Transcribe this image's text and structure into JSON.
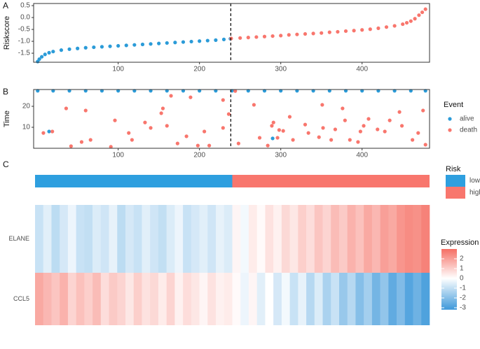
{
  "chart_data": [
    {
      "type": "scatter",
      "panel_label": "A",
      "ylabel": "Riskscore",
      "xlim": [
        -4,
        483
      ],
      "ylim": [
        -1.88,
        0.59
      ],
      "xticks": [
        100,
        200,
        300,
        400
      ],
      "yticks": [
        0.5,
        {
          "value": 0,
          "label": "0.0"
        },
        -0.5,
        {
          "value": -1,
          "label": "-1.0"
        },
        -1.5
      ],
      "vline": 238.5,
      "series": [
        {
          "color": "#2b9bd8",
          "x": [
            1,
            3,
            6,
            10,
            15,
            20,
            30,
            40,
            50,
            60,
            70,
            80,
            90,
            100,
            110,
            120,
            130,
            140,
            150,
            160,
            170,
            180,
            190,
            200,
            210,
            220,
            230,
            238
          ],
          "values": [
            -1.85,
            -1.75,
            -1.65,
            -1.55,
            -1.48,
            -1.43,
            -1.37,
            -1.33,
            -1.3,
            -1.27,
            -1.25,
            -1.23,
            -1.21,
            -1.19,
            -1.17,
            -1.15,
            -1.13,
            -1.11,
            -1.09,
            -1.07,
            -1.05,
            -1.03,
            -1.01,
            -0.99,
            -0.97,
            -0.95,
            -0.92,
            -0.89
          ]
        },
        {
          "color": "#f8766d",
          "x": [
            239,
            250,
            260,
            270,
            280,
            290,
            300,
            310,
            320,
            330,
            340,
            350,
            360,
            370,
            380,
            390,
            400,
            410,
            420,
            430,
            440,
            450,
            455,
            460,
            465,
            470,
            474,
            478
          ],
          "values": [
            -0.88,
            -0.86,
            -0.84,
            -0.82,
            -0.8,
            -0.78,
            -0.76,
            -0.73,
            -0.71,
            -0.69,
            -0.67,
            -0.65,
            -0.62,
            -0.6,
            -0.57,
            -0.55,
            -0.52,
            -0.49,
            -0.45,
            -0.4,
            -0.35,
            -0.28,
            -0.22,
            -0.15,
            -0.05,
            0.1,
            0.22,
            0.35
          ]
        }
      ]
    },
    {
      "type": "scatter",
      "panel_label": "B",
      "ylabel": "Time",
      "legend_title": "Event",
      "xlim": [
        -4,
        483
      ],
      "ylim": [
        0,
        28
      ],
      "xticks": [
        100,
        200,
        300,
        400
      ],
      "yticks": [
        10,
        20
      ],
      "vline": 238.5,
      "series": [
        {
          "name": "alive",
          "color": "#2b9bd8",
          "x": [
            1,
            20,
            40,
            60,
            80,
            100,
            120,
            140,
            160,
            180,
            200,
            220,
            240,
            260,
            280,
            300,
            320,
            340,
            360,
            380,
            400,
            420,
            440,
            460,
            478,
            15,
            290
          ],
          "values": [
            27.4,
            27.4,
            27.4,
            27.4,
            27.4,
            27.4,
            27.4,
            27.4,
            27.4,
            27.4,
            27.4,
            27.4,
            27.4,
            27.4,
            27.4,
            27.4,
            27.4,
            27.4,
            27.4,
            27.4,
            27.4,
            27.4,
            27.4,
            27.4,
            27.4,
            8,
            4.7
          ]
        },
        {
          "name": "death",
          "color": "#f8766d",
          "x": [
            8,
            19,
            36,
            42,
            60,
            55,
            66,
            91,
            96,
            113,
            117,
            133,
            140,
            153,
            155,
            160,
            165,
            173,
            184,
            189,
            198,
            206,
            212,
            229,
            229,
            236,
            244,
            248,
            267,
            274,
            284,
            289,
            291,
            296,
            298,
            303,
            311,
            315,
            330,
            334,
            347,
            351,
            352,
            362,
            367,
            376,
            379,
            385,
            395,
            398,
            402,
            408,
            419,
            428,
            434,
            446,
            449,
            462,
            469,
            475,
            478
          ],
          "values": [
            7.3,
            8,
            19,
            1,
            18,
            3,
            4,
            0.7,
            13.3,
            7.3,
            4,
            12.3,
            9.7,
            16.7,
            19,
            10.7,
            25,
            2.3,
            5.7,
            24.3,
            1.3,
            8,
            1.3,
            23,
            9.7,
            16.3,
            27.3,
            2.3,
            20.7,
            5,
            1.3,
            10.7,
            12.3,
            5,
            8.7,
            8.3,
            15,
            4,
            11.3,
            7.3,
            5.3,
            20.7,
            9.7,
            4,
            9,
            19,
            13.3,
            4,
            3,
            8,
            10.7,
            14,
            9,
            8,
            13.3,
            17.3,
            10.7,
            4,
            7.3,
            18,
            1.7
          ]
        }
      ]
    },
    {
      "type": "heatmap",
      "panel_label": "C",
      "rows": [
        "ELANE",
        "CCL5"
      ],
      "values": [
        [
          -0.9,
          -0.5,
          -1.1,
          -0.7,
          -0.3,
          -0.9,
          -1.0,
          -0.6,
          -0.8,
          -0.4,
          -1.1,
          -0.7,
          -0.9,
          -0.5,
          -0.8,
          -1.0,
          -0.6,
          -0.3,
          -0.9,
          -0.7,
          -0.5,
          -0.8,
          -0.4,
          -0.6,
          0.2,
          -0.2,
          0.4,
          0.1,
          0.6,
          0.3,
          0.8,
          0.5,
          1.0,
          0.7,
          1.2,
          0.9,
          1.4,
          1.1,
          1.6,
          1.3,
          1.8,
          1.5,
          2.0,
          1.8,
          2.2,
          2.4,
          2.3,
          2.6
        ],
        [
          1.8,
          1.5,
          1.2,
          1.6,
          0.9,
          1.3,
          1.0,
          1.4,
          0.7,
          1.1,
          0.9,
          0.5,
          1.0,
          0.6,
          0.8,
          0.4,
          0.9,
          0.3,
          0.7,
          0.5,
          0.2,
          0.6,
          0.3,
          0.4,
          0.1,
          -0.3,
          0.2,
          -0.5,
          0.0,
          -0.7,
          -0.2,
          -0.9,
          -0.4,
          -1.2,
          -0.6,
          -1.4,
          -0.9,
          -1.7,
          -1.2,
          -2.0,
          -1.5,
          -2.3,
          -1.8,
          -2.6,
          -2.1,
          -2.8,
          -2.4,
          -2.9
        ]
      ],
      "risk_title": "Risk",
      "risk_groups": [
        {
          "name": "low",
          "color": "#2e9fdf",
          "n": 24
        },
        {
          "name": "high",
          "color": "#f8766d",
          "n": 24
        }
      ],
      "color_title": "Expression",
      "color_limits": [
        -3.2,
        3.0
      ],
      "color_ticks": [
        2,
        1,
        0,
        -1,
        -2,
        -3
      ],
      "colors": {
        "low": "#3d98da",
        "mid": "#ffffff",
        "high": "#f56f64"
      }
    }
  ]
}
